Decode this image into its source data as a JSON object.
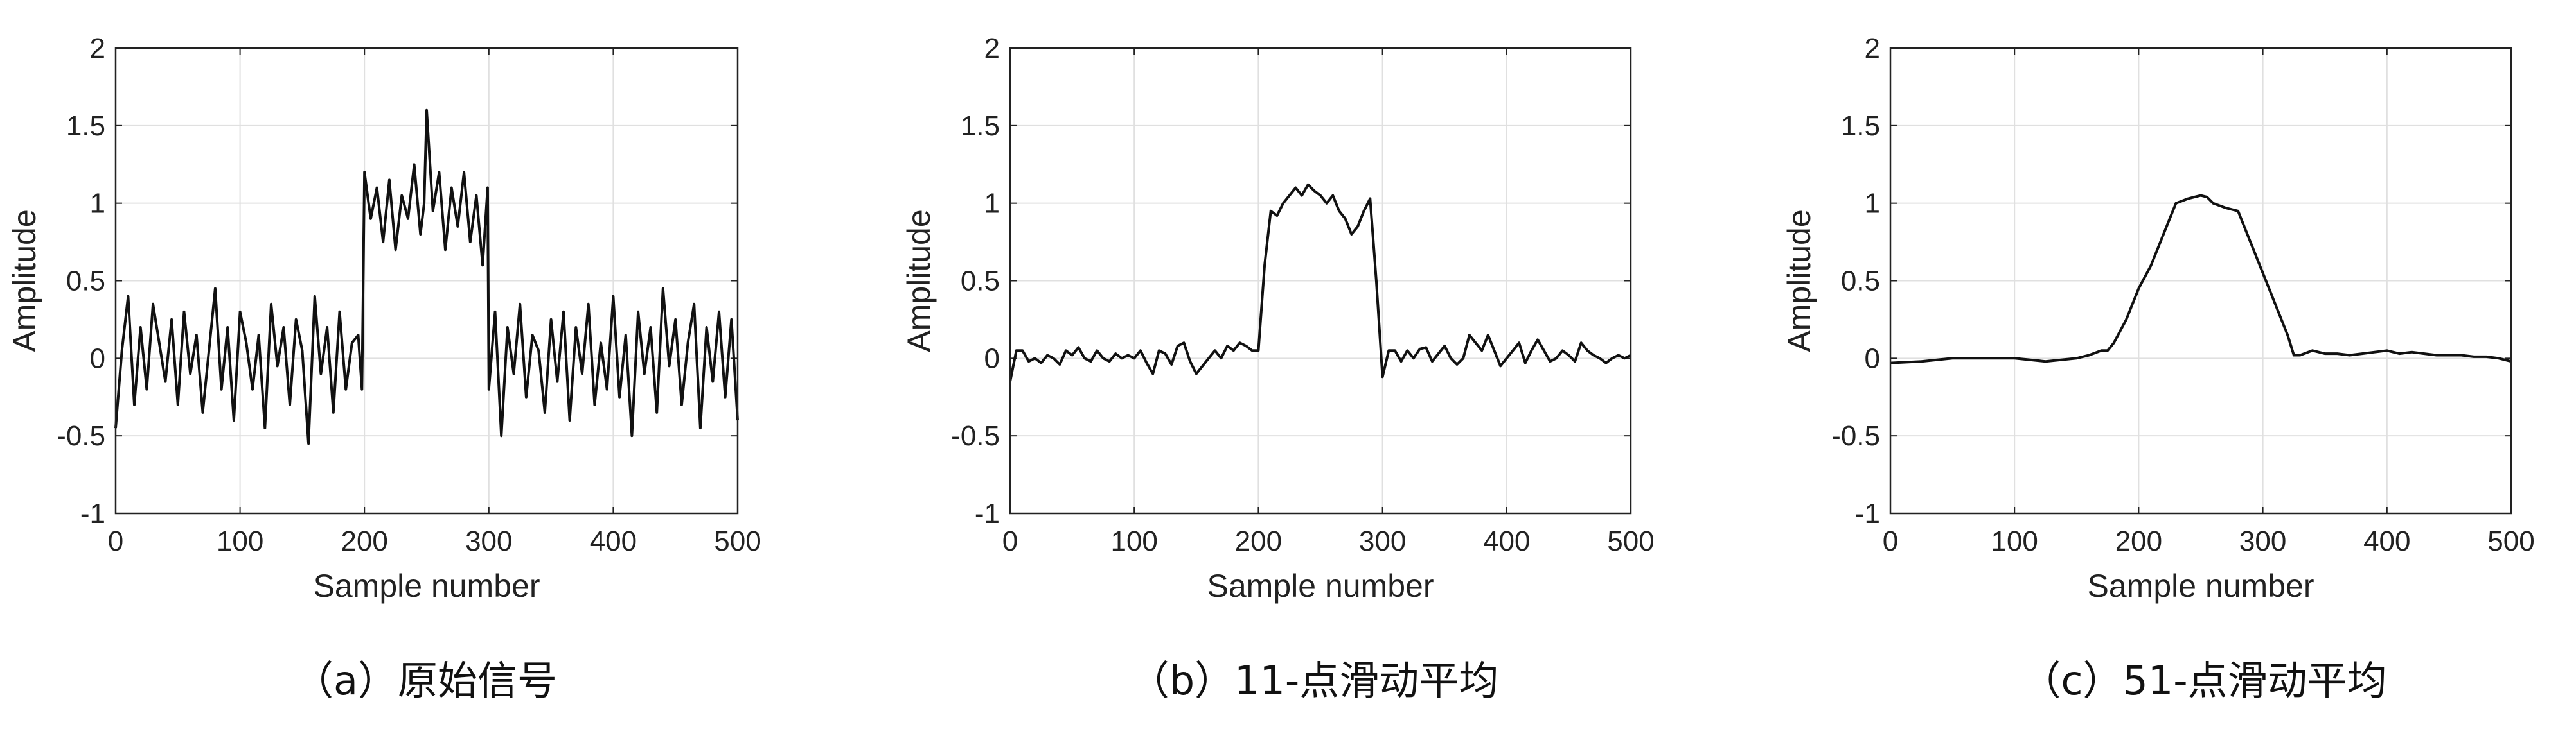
{
  "chart_data": [
    {
      "type": "line",
      "caption": "（a）原始信号",
      "xlabel": "Sample number",
      "ylabel": "Amplitude",
      "xlim": [
        0,
        500
      ],
      "ylim": [
        -1,
        2
      ],
      "xticks": [
        "0",
        "100",
        "200",
        "300",
        "400",
        "500"
      ],
      "yticks": [
        "-1",
        "-0.5",
        "0",
        "0.5",
        "1",
        "1.5",
        "2"
      ],
      "grid": true,
      "series": [
        {
          "x": [
            0,
            5,
            10,
            15,
            20,
            25,
            30,
            35,
            40,
            45,
            50,
            55,
            60,
            65,
            70,
            75,
            80,
            85,
            90,
            95,
            100,
            105,
            110,
            115,
            120,
            125,
            130,
            135,
            140,
            145,
            150,
            155,
            160,
            165,
            170,
            175,
            180,
            185,
            190,
            195,
            198,
            200,
            205,
            210,
            215,
            220,
            225,
            230,
            235,
            240,
            245,
            248,
            250,
            255,
            260,
            265,
            270,
            275,
            280,
            285,
            290,
            295,
            299,
            300,
            305,
            310,
            315,
            320,
            325,
            330,
            335,
            340,
            345,
            350,
            355,
            360,
            365,
            370,
            375,
            380,
            385,
            390,
            395,
            400,
            405,
            410,
            415,
            420,
            425,
            430,
            435,
            440,
            445,
            450,
            455,
            460,
            465,
            470,
            475,
            480,
            485,
            490,
            495,
            500
          ],
          "y": [
            -0.45,
            0.05,
            0.4,
            -0.3,
            0.2,
            -0.2,
            0.35,
            0.1,
            -0.15,
            0.25,
            -0.3,
            0.3,
            -0.1,
            0.15,
            -0.35,
            0.05,
            0.45,
            -0.2,
            0.2,
            -0.4,
            0.3,
            0.1,
            -0.2,
            0.15,
            -0.45,
            0.35,
            -0.05,
            0.2,
            -0.3,
            0.25,
            0.05,
            -0.55,
            0.4,
            -0.1,
            0.2,
            -0.35,
            0.3,
            -0.2,
            0.1,
            0.15,
            -0.2,
            1.2,
            0.9,
            1.1,
            0.75,
            1.15,
            0.7,
            1.05,
            0.9,
            1.25,
            0.8,
            1.0,
            1.6,
            0.95,
            1.2,
            0.7,
            1.1,
            0.85,
            1.2,
            0.75,
            1.05,
            0.6,
            1.1,
            -0.2,
            0.3,
            -0.5,
            0.2,
            -0.1,
            0.35,
            -0.25,
            0.15,
            0.05,
            -0.35,
            0.25,
            -0.15,
            0.3,
            -0.4,
            0.2,
            -0.1,
            0.35,
            -0.3,
            0.1,
            -0.2,
            0.4,
            -0.25,
            0.15,
            -0.5,
            0.3,
            -0.1,
            0.2,
            -0.35,
            0.45,
            -0.05,
            0.25,
            -0.3,
            0.1,
            0.35,
            -0.45,
            0.2,
            -0.15,
            0.3,
            -0.25,
            0.25,
            -0.4
          ]
        }
      ]
    },
    {
      "type": "line",
      "caption": "（b）11-点滑动平均",
      "xlabel": "Sample number",
      "ylabel": "Amplitude",
      "xlim": [
        0,
        500
      ],
      "ylim": [
        -1,
        2
      ],
      "xticks": [
        "0",
        "100",
        "200",
        "300",
        "400",
        "500"
      ],
      "yticks": [
        "-1",
        "-0.5",
        "0",
        "0.5",
        "1",
        "1.5",
        "2"
      ],
      "grid": true,
      "series": [
        {
          "x": [
            0,
            5,
            10,
            15,
            20,
            25,
            30,
            35,
            40,
            45,
            50,
            55,
            60,
            65,
            70,
            75,
            80,
            85,
            90,
            95,
            100,
            105,
            110,
            115,
            120,
            125,
            130,
            135,
            140,
            145,
            150,
            155,
            160,
            165,
            170,
            175,
            180,
            185,
            190,
            195,
            200,
            205,
            210,
            215,
            220,
            225,
            230,
            235,
            240,
            245,
            250,
            255,
            260,
            265,
            270,
            275,
            280,
            285,
            290,
            295,
            300,
            305,
            310,
            315,
            320,
            325,
            330,
            335,
            340,
            345,
            350,
            355,
            360,
            365,
            370,
            375,
            380,
            385,
            390,
            395,
            400,
            405,
            410,
            415,
            420,
            425,
            430,
            435,
            440,
            445,
            450,
            455,
            460,
            465,
            470,
            475,
            480,
            485,
            490,
            495,
            500
          ],
          "y": [
            -0.15,
            0.05,
            0.05,
            -0.02,
            0.0,
            -0.03,
            0.02,
            0.0,
            -0.04,
            0.05,
            0.02,
            0.07,
            0.0,
            -0.02,
            0.05,
            0.0,
            -0.02,
            0.03,
            0.0,
            0.02,
            0.0,
            0.05,
            -0.03,
            -0.1,
            0.05,
            0.03,
            -0.04,
            0.08,
            0.1,
            -0.02,
            -0.1,
            -0.05,
            0.0,
            0.05,
            0.0,
            0.08,
            0.05,
            0.1,
            0.08,
            0.05,
            0.05,
            0.6,
            0.95,
            0.92,
            1.0,
            1.05,
            1.1,
            1.05,
            1.12,
            1.08,
            1.05,
            1.0,
            1.05,
            0.95,
            0.9,
            0.8,
            0.85,
            0.95,
            1.03,
            0.5,
            -0.12,
            0.05,
            0.05,
            -0.02,
            0.05,
            0.0,
            0.06,
            0.07,
            -0.02,
            0.03,
            0.08,
            0.0,
            -0.04,
            0.0,
            0.15,
            0.1,
            0.05,
            0.15,
            0.05,
            -0.05,
            0.0,
            0.05,
            0.1,
            -0.03,
            0.05,
            0.12,
            0.05,
            -0.02,
            0.0,
            0.05,
            0.02,
            -0.02,
            0.1,
            0.05,
            0.02,
            0.0,
            -0.03,
            0.0,
            0.02,
            0.0,
            0.02
          ]
        }
      ]
    },
    {
      "type": "line",
      "caption": "（c）51-点滑动平均",
      "xlabel": "Sample number",
      "ylabel": "Amplitude",
      "xlim": [
        0,
        500
      ],
      "ylim": [
        -1,
        2
      ],
      "xticks": [
        "0",
        "100",
        "200",
        "300",
        "400",
        "500"
      ],
      "yticks": [
        "-1",
        "-0.5",
        "0",
        "0.5",
        "1",
        "1.5",
        "2"
      ],
      "grid": true,
      "series": [
        {
          "x": [
            0,
            25,
            50,
            75,
            100,
            125,
            150,
            160,
            170,
            175,
            180,
            190,
            200,
            210,
            220,
            230,
            240,
            245,
            250,
            255,
            260,
            270,
            280,
            290,
            300,
            310,
            320,
            325,
            330,
            340,
            350,
            360,
            370,
            380,
            390,
            400,
            410,
            420,
            430,
            440,
            450,
            460,
            470,
            480,
            490,
            500
          ],
          "y": [
            -0.03,
            -0.02,
            0.0,
            0.0,
            0.0,
            -0.02,
            0.0,
            0.02,
            0.05,
            0.05,
            0.1,
            0.25,
            0.45,
            0.6,
            0.8,
            1.0,
            1.03,
            1.04,
            1.05,
            1.04,
            1.0,
            0.97,
            0.95,
            0.75,
            0.55,
            0.35,
            0.15,
            0.02,
            0.02,
            0.05,
            0.03,
            0.03,
            0.02,
            0.03,
            0.04,
            0.05,
            0.03,
            0.04,
            0.03,
            0.02,
            0.02,
            0.02,
            0.01,
            0.01,
            0.0,
            -0.02
          ]
        }
      ]
    }
  ]
}
